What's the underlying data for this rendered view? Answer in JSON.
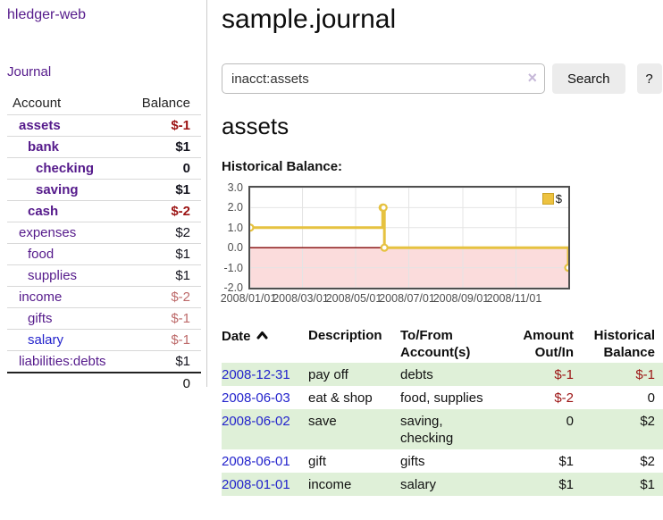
{
  "app": {
    "brand": "hledger-web"
  },
  "sidebar": {
    "journal_link": "Journal",
    "header": {
      "account": "Account",
      "balance": "Balance"
    },
    "accounts": [
      {
        "name": "assets",
        "balance": "$-1",
        "depth": 0,
        "selected": true
      },
      {
        "name": "bank",
        "balance": "$1",
        "depth": 1,
        "selected": true
      },
      {
        "name": "checking",
        "balance": "0",
        "depth": 2,
        "selected": true
      },
      {
        "name": "saving",
        "balance": "$1",
        "depth": 2,
        "selected": true
      },
      {
        "name": "cash",
        "balance": "$-2",
        "depth": 1,
        "selected": true
      },
      {
        "name": "expenses",
        "balance": "$2",
        "depth": 0,
        "selected": false
      },
      {
        "name": "food",
        "balance": "$1",
        "depth": 1,
        "selected": false
      },
      {
        "name": "supplies",
        "balance": "$1",
        "depth": 1,
        "selected": false
      },
      {
        "name": "income",
        "balance": "$-2",
        "depth": 0,
        "selected": false
      },
      {
        "name": "gifts",
        "balance": "$-1",
        "depth": 1,
        "selected": false
      },
      {
        "name": "salary",
        "balance": "$-1",
        "depth": 1,
        "selected": false
      },
      {
        "name": "liabilities:debts",
        "balance": "$1",
        "depth": 0,
        "selected": false
      }
    ],
    "total": "0"
  },
  "header": {
    "title": "sample.journal"
  },
  "search": {
    "value": "inacct:assets",
    "clear_icon": "×",
    "search_button": "Search",
    "help_button": "?"
  },
  "account_page": {
    "heading": "assets",
    "chart_title": "Historical Balance:"
  },
  "chart_data": {
    "type": "line",
    "step": true,
    "title": "Historical Balance:",
    "x": [
      "2008-01-01",
      "2008-06-01",
      "2008-06-02",
      "2008-06-03",
      "2008-12-31"
    ],
    "series": [
      {
        "name": "$",
        "color": "#E6C240",
        "values": [
          1,
          2,
          2,
          0,
          -1
        ]
      }
    ],
    "xlim": [
      "2008-01-01",
      "2008-12-31"
    ],
    "ylim": [
      -2,
      3
    ],
    "y_ticks": [
      3,
      2,
      1,
      0,
      -1,
      -2
    ],
    "x_ticks": [
      {
        "label": "2008/01/01",
        "date": "2008-01-01"
      },
      {
        "label": "2008/03/01",
        "date": "2008-03-01"
      },
      {
        "label": "2008/05/01",
        "date": "2008-05-01"
      },
      {
        "label": "2008/07/01",
        "date": "2008-07-01"
      },
      {
        "label": "2008/09/01",
        "date": "2008-09-01"
      },
      {
        "label": "2008/11/01",
        "date": "2008-11-01"
      }
    ],
    "legend": {
      "label": "$",
      "position": "top-right"
    },
    "grid": true,
    "colors": {
      "negative_region_fill": "#fbdcdc",
      "zero_line": "#8c1717",
      "gridline": "#e4e4e4"
    }
  },
  "register": {
    "columns": {
      "date": "Date",
      "description": "Description",
      "accounts": "To/From Account(s)",
      "amount": "Amount Out/In",
      "balance": "Historical Balance"
    },
    "rows": [
      {
        "date": "2008-12-31",
        "description": "pay off",
        "accounts": "debts",
        "amount": "$-1",
        "balance": "$-1"
      },
      {
        "date": "2008-06-03",
        "description": "eat & shop",
        "accounts": "food, supplies",
        "amount": "$-2",
        "balance": "0"
      },
      {
        "date": "2008-06-02",
        "description": "save",
        "accounts": "saving, checking",
        "amount": "0",
        "balance": "$2"
      },
      {
        "date": "2008-06-01",
        "description": "gift",
        "accounts": "gifts",
        "amount": "$1",
        "balance": "$2"
      },
      {
        "date": "2008-01-01",
        "description": "income",
        "accounts": "salary",
        "amount": "$1",
        "balance": "$1"
      }
    ]
  }
}
